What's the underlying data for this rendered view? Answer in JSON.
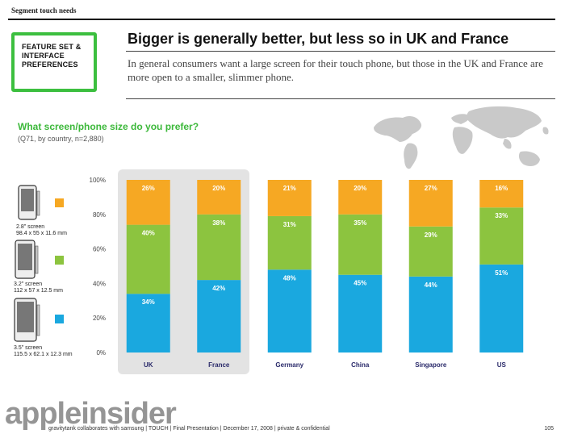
{
  "header": {
    "section_label": "Segment touch needs"
  },
  "feature_box": {
    "line1": "FEATURE SET &",
    "line2": "INTERFACE",
    "line3": "PREFERENCES"
  },
  "headline": {
    "title": "Bigger is generally better, but less so in UK and France",
    "subtitle": "In general consumers want a large screen for their touch phone, but those in the UK and France are more open to a smaller, slimmer phone."
  },
  "question": {
    "text": "What screen/phone size do you prefer?",
    "sub": "(Q71, by country, n=2,880)"
  },
  "legend": [
    {
      "screen": "2.8\" screen",
      "dims": "98.4 x 55 x 11.6 mm",
      "color": "#f6a823"
    },
    {
      "screen": "3.2\" screen",
      "dims": "112 x 57 x 12.5 mm",
      "color": "#8cc43f"
    },
    {
      "screen": "3.5\" screen",
      "dims": "115.5 x 62.1 x 12.3 mm",
      "color": "#1aa8df"
    }
  ],
  "chart_data": {
    "type": "bar",
    "stacked": true,
    "categories": [
      "UK",
      "France",
      "Germany",
      "China",
      "Singapore",
      "US"
    ],
    "highlighted_categories": [
      "UK",
      "France"
    ],
    "series": [
      {
        "name": "3.5\" screen",
        "values": [
          34,
          42,
          48,
          45,
          44,
          51
        ],
        "labels": [
          "34%",
          "42%",
          "48%",
          "45%",
          "44%",
          "51%"
        ],
        "color": "#1aa8df"
      },
      {
        "name": "3.2\" screen",
        "values": [
          40,
          38,
          31,
          35,
          29,
          33
        ],
        "labels": [
          "40%",
          "38%",
          "31%",
          "35%",
          "29%",
          "33%"
        ],
        "color": "#8cc43f"
      },
      {
        "name": "2.8\" screen",
        "values": [
          26,
          20,
          21,
          20,
          27,
          16
        ],
        "labels": [
          "26%",
          "20%",
          "21%",
          "20%",
          "27%",
          "16%"
        ],
        "color": "#f6a823"
      }
    ],
    "yticks": [
      "0%",
      "20%",
      "40%",
      "60%",
      "80%",
      "100%"
    ],
    "ylim": [
      0,
      100
    ]
  },
  "footer": {
    "text": "gravitytank collaborates with samsung  |  TOUCH  |  Final Presentation  |  December 17, 2008  |  private & confidential",
    "page": "105"
  },
  "watermark": "appleinsider"
}
